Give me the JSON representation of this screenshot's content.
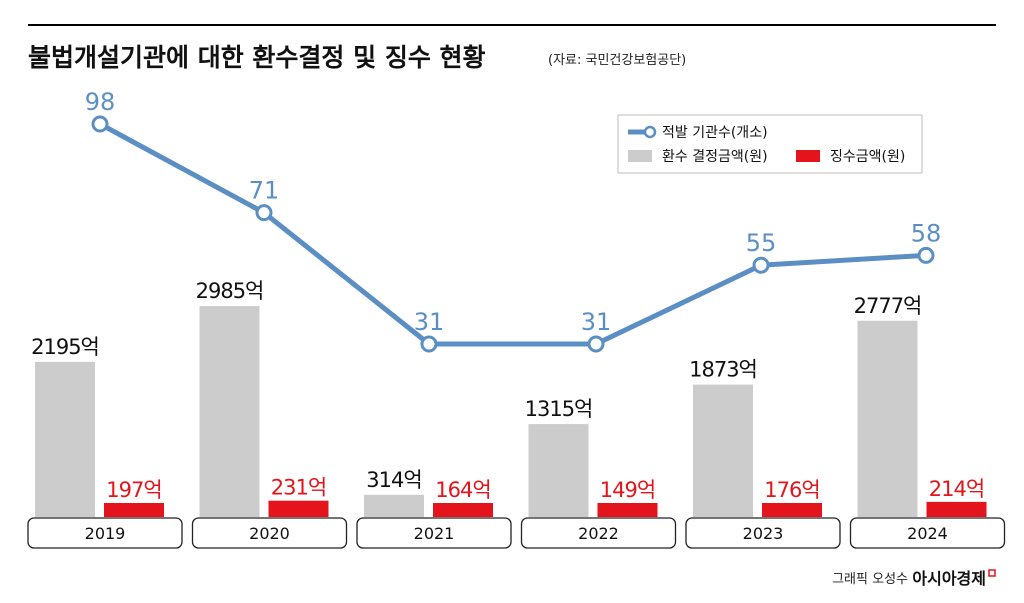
{
  "header": {
    "title": "불법개설기관에 대한 환수결정 및 징수 현황",
    "source": "(자료: 국민건강보험공단)"
  },
  "chart_data": {
    "type": "bar+line",
    "categories": [
      "2019",
      "2020",
      "2021",
      "2022",
      "2023",
      "2024"
    ],
    "series": [
      {
        "name": "적발 기관수(개소)",
        "kind": "line",
        "color": "#5b8fc3",
        "values": [
          98,
          71,
          31,
          31,
          55,
          58
        ],
        "labels": [
          "98",
          "71",
          "31",
          "31",
          "55",
          "58"
        ]
      },
      {
        "name": "환수 결정금액(원)",
        "kind": "bar",
        "color": "#cccccc",
        "values": [
          2195,
          2985,
          314,
          1315,
          1873,
          2777
        ],
        "labels": [
          "2195억",
          "2985억",
          "314억",
          "1315억",
          "1873억",
          "2777억"
        ]
      },
      {
        "name": "징수금액(원)",
        "kind": "bar",
        "color": "#e3141b",
        "values": [
          197,
          231,
          164,
          149,
          176,
          214
        ],
        "labels": [
          "197억",
          "231억",
          "164억",
          "149억",
          "176억",
          "214억"
        ]
      }
    ],
    "legend": {
      "line": "적발 기관수(개소)",
      "bar1": "환수 결정금액(원)",
      "bar2": "징수금액(원)",
      "position": "top-right"
    },
    "ylim_bars": [
      0,
      3000
    ],
    "ylim_line": [
      0,
      100
    ],
    "unit": "억"
  },
  "credit": {
    "text": "그래픽 오성수",
    "brand": "아시아경제"
  },
  "colors": {
    "rule": "#000000",
    "grey_bar": "#cccccc",
    "red_bar": "#e3141b",
    "red_text": "#e3141b",
    "line": "#5b8fc3",
    "line_text": "#5b8fc3"
  }
}
